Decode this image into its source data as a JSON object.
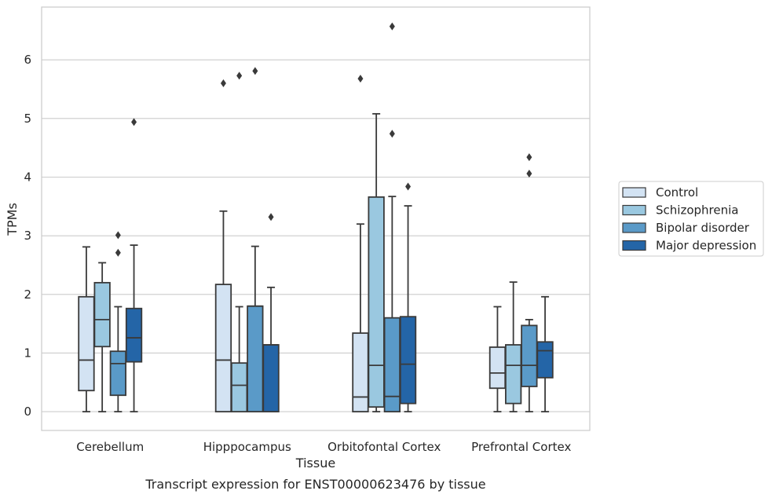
{
  "chart_data": {
    "type": "box",
    "xlabel": "Tissue",
    "ylabel": "TPMs",
    "caption": "Transcript expression for ENST00000623476 by tissue",
    "categories": [
      "Cerebellum",
      "Hipppocampus",
      "Orbitofontal Cortex",
      "Prefrontal Cortex"
    ],
    "ylim": [
      -0.32,
      6.9
    ],
    "yticks": [
      0,
      1,
      2,
      3,
      4,
      5,
      6
    ],
    "grid": "horizontal",
    "legend_position": "right",
    "series": [
      {
        "name": "Control",
        "color": "#d3e3f3",
        "boxes": [
          {
            "whisker_low": 0,
            "q1": 0.36,
            "median": 0.88,
            "q3": 1.96,
            "whisker_high": 2.81,
            "outliers": []
          },
          {
            "whisker_low": 0,
            "q1": 0,
            "median": 0.88,
            "q3": 2.17,
            "whisker_high": 3.42,
            "outliers": [
              5.6
            ]
          },
          {
            "whisker_low": 0,
            "q1": 0,
            "median": 0.25,
            "q3": 1.34,
            "whisker_high": 3.2,
            "outliers": [
              5.68
            ]
          },
          {
            "whisker_low": 0,
            "q1": 0.4,
            "median": 0.66,
            "q3": 1.1,
            "whisker_high": 1.79,
            "outliers": []
          }
        ]
      },
      {
        "name": "Schizophrenia",
        "color": "#9ac8e0",
        "boxes": [
          {
            "whisker_low": 0,
            "q1": 1.11,
            "median": 1.57,
            "q3": 2.2,
            "whisker_high": 2.54,
            "outliers": []
          },
          {
            "whisker_low": 0,
            "q1": 0,
            "median": 0.45,
            "q3": 0.83,
            "whisker_high": 1.79,
            "outliers": [
              5.73
            ]
          },
          {
            "whisker_low": 0,
            "q1": 0.08,
            "median": 0.79,
            "q3": 3.66,
            "whisker_high": 5.08,
            "outliers": []
          },
          {
            "whisker_low": 0,
            "q1": 0.14,
            "median": 0.79,
            "q3": 1.14,
            "whisker_high": 2.21,
            "outliers": []
          }
        ]
      },
      {
        "name": "Bipolar disorder",
        "color": "#5a9ac8",
        "boxes": [
          {
            "whisker_low": 0,
            "q1": 0.28,
            "median": 0.82,
            "q3": 1.03,
            "whisker_high": 1.79,
            "outliers": [
              2.71,
              3.01
            ]
          },
          {
            "whisker_low": 0,
            "q1": 0,
            "median": 1.8,
            "q3": 1.8,
            "whisker_high": 2.82,
            "outliers": [
              5.81
            ]
          },
          {
            "whisker_low": 0,
            "q1": 0,
            "median": 0.26,
            "q3": 1.6,
            "whisker_high": 3.67,
            "outliers": [
              4.74,
              6.57
            ]
          },
          {
            "whisker_low": 0,
            "q1": 0.43,
            "median": 0.79,
            "q3": 1.47,
            "whisker_high": 1.57,
            "outliers": [
              4.06,
              4.34
            ]
          }
        ]
      },
      {
        "name": "Major depression",
        "color": "#2465a7",
        "boxes": [
          {
            "whisker_low": 0,
            "q1": 0.85,
            "median": 1.26,
            "q3": 1.76,
            "whisker_high": 2.84,
            "outliers": [
              4.94
            ]
          },
          {
            "whisker_low": 0,
            "q1": 0,
            "median": 1.14,
            "q3": 1.14,
            "whisker_high": 2.12,
            "outliers": [
              3.32
            ]
          },
          {
            "whisker_low": 0,
            "q1": 0.14,
            "median": 0.81,
            "q3": 1.62,
            "whisker_high": 3.51,
            "outliers": [
              3.84
            ]
          },
          {
            "whisker_low": 0,
            "q1": 0.58,
            "median": 1.04,
            "q3": 1.19,
            "whisker_high": 1.96,
            "outliers": []
          }
        ]
      }
    ]
  }
}
